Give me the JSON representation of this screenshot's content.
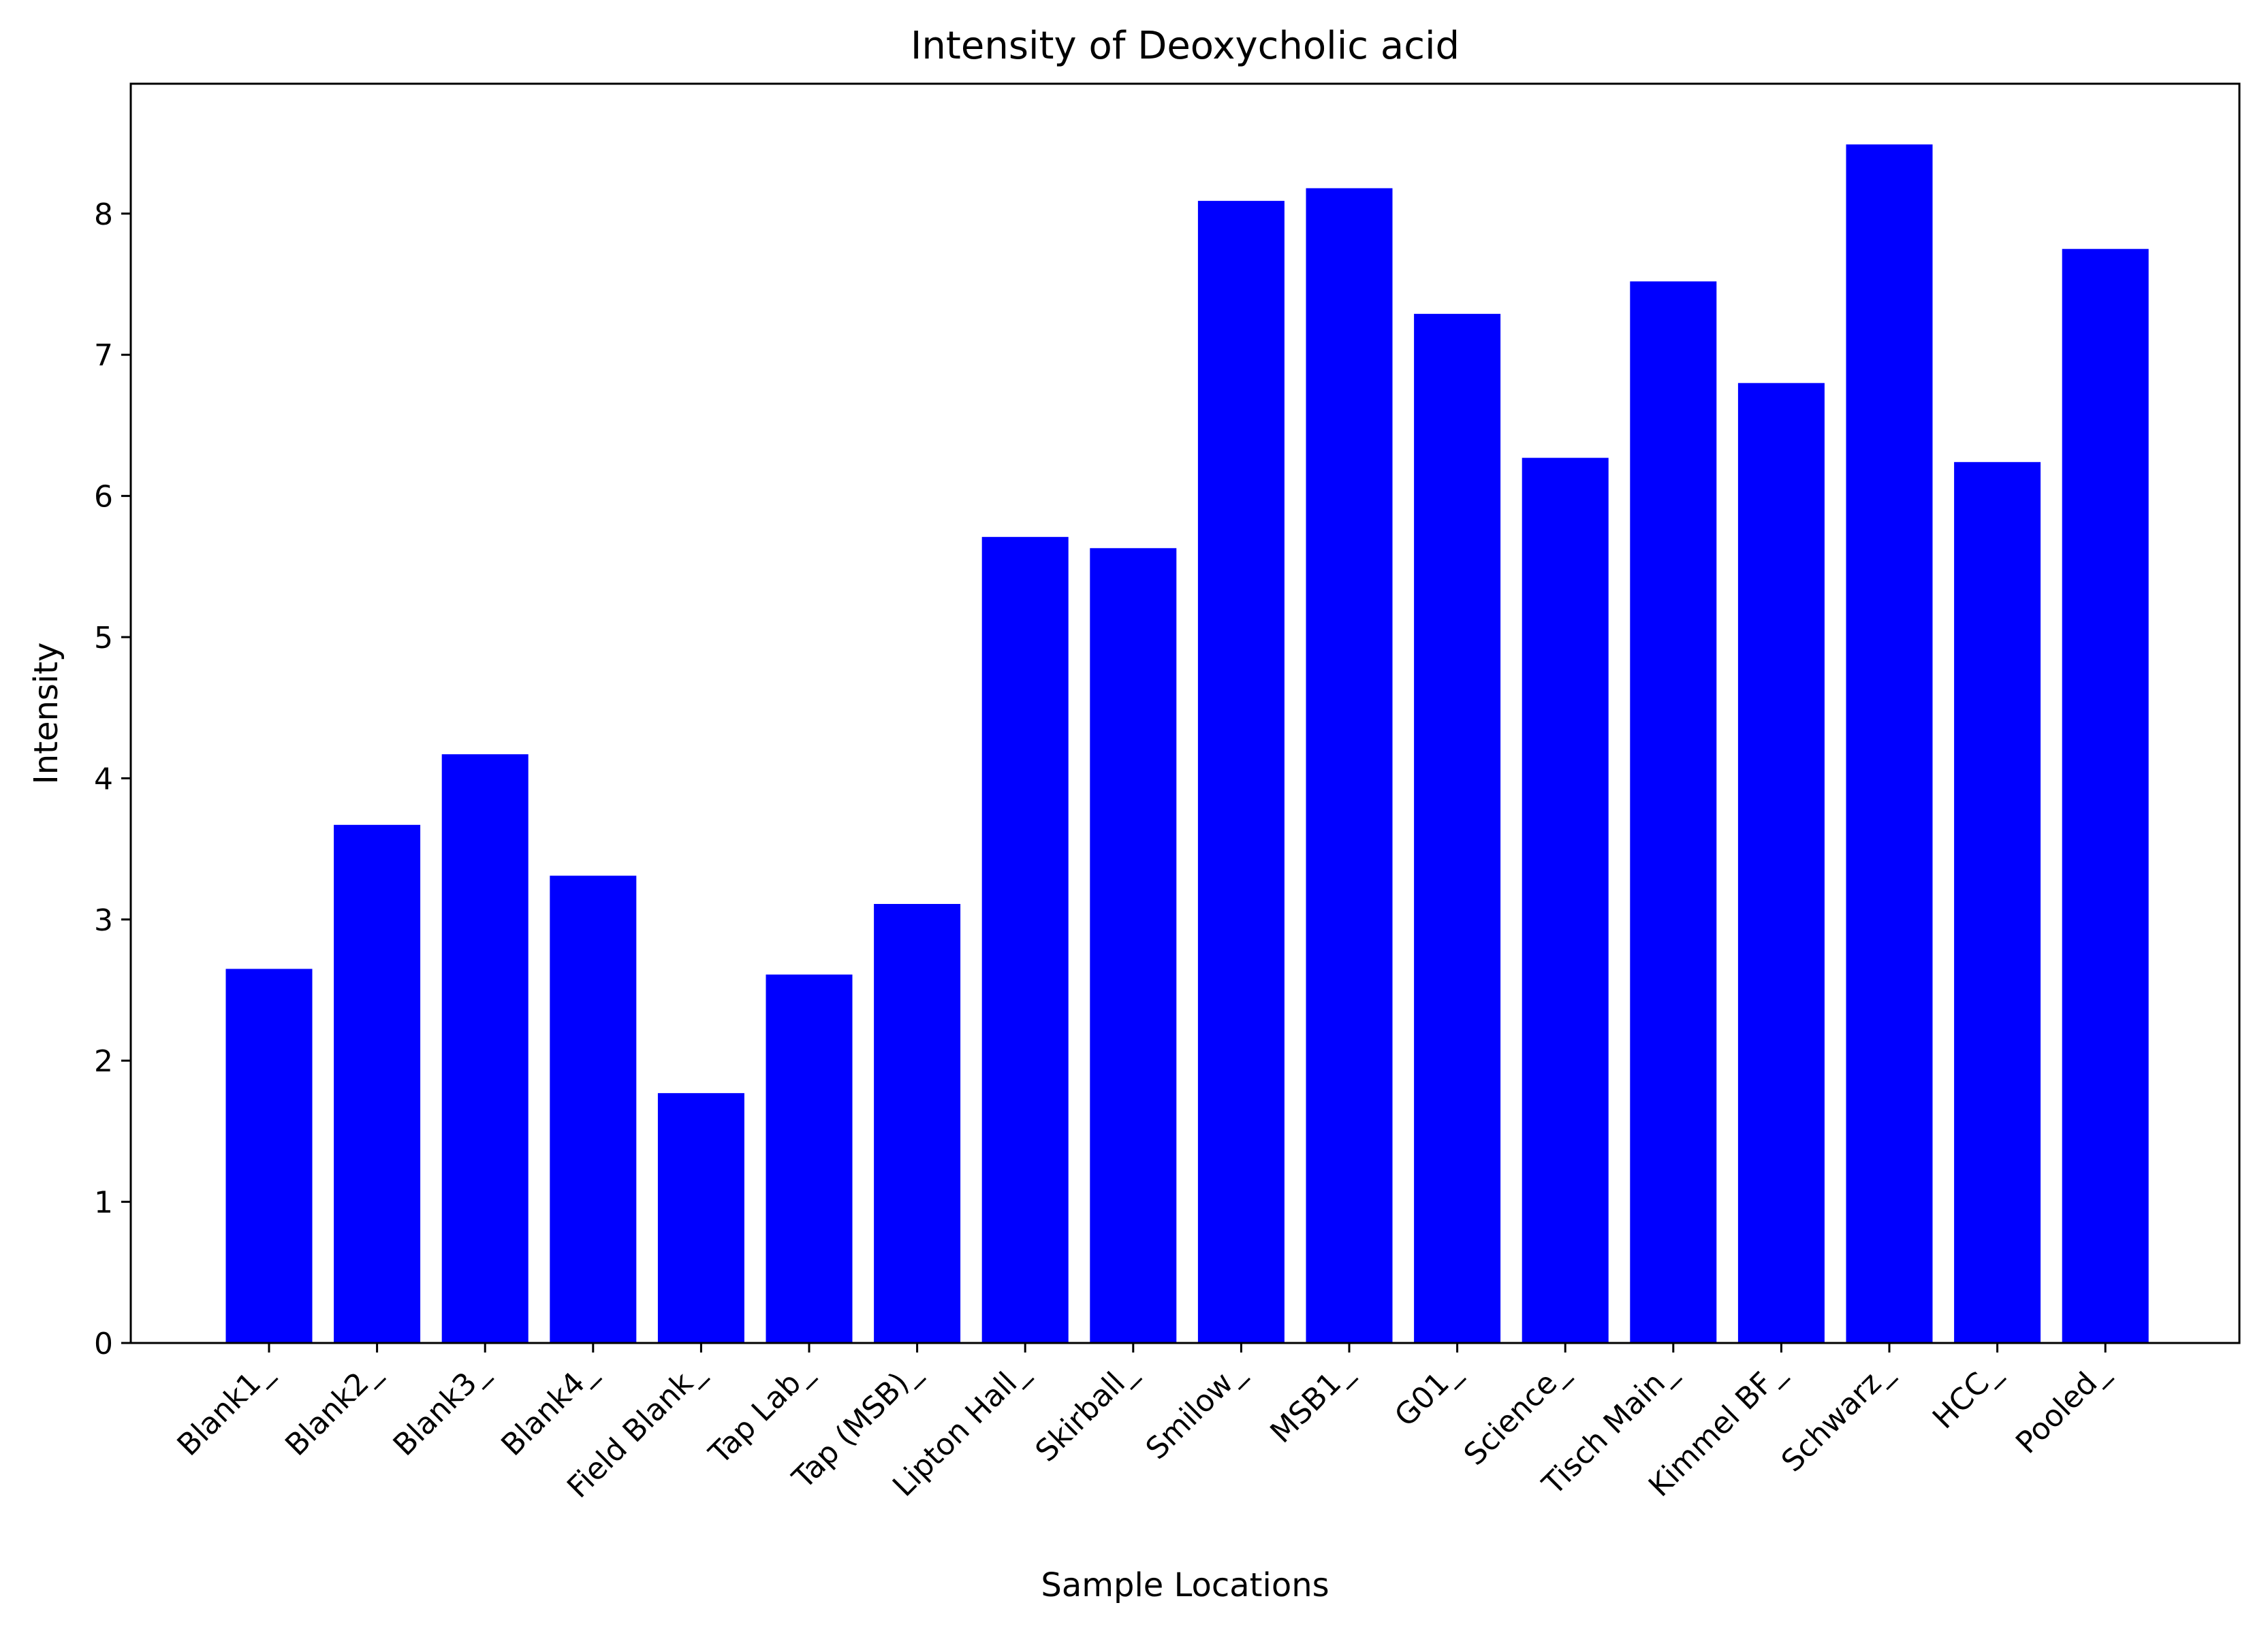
{
  "chart_data": {
    "type": "bar",
    "title": "Intensity of Deoxycholic acid",
    "xlabel": "Sample Locations",
    "ylabel": "Intensity",
    "ylim": [
      0,
      8.92
    ],
    "yticks": [
      0,
      1,
      2,
      3,
      4,
      5,
      6,
      7,
      8
    ],
    "grid": false,
    "bar_color": "#0000ff",
    "categories": [
      "Blank1_",
      "Blank2_",
      "Blank3_",
      "Blank4_",
      "Field Blank_",
      "Tap Lab_",
      "Tap (MSB)_",
      "Lipton Hall_",
      "Skirball_",
      "Smilow_",
      "MSB1_",
      "G01_",
      "Science_",
      "Tisch Main_",
      "Kimmel BF_",
      "Schwarz_",
      "HCC_",
      "Pooled_"
    ],
    "values": [
      2.65,
      3.67,
      4.17,
      3.31,
      1.77,
      2.61,
      3.11,
      5.71,
      5.63,
      8.09,
      8.18,
      7.29,
      6.27,
      7.52,
      6.8,
      8.49,
      6.24,
      7.75
    ]
  }
}
